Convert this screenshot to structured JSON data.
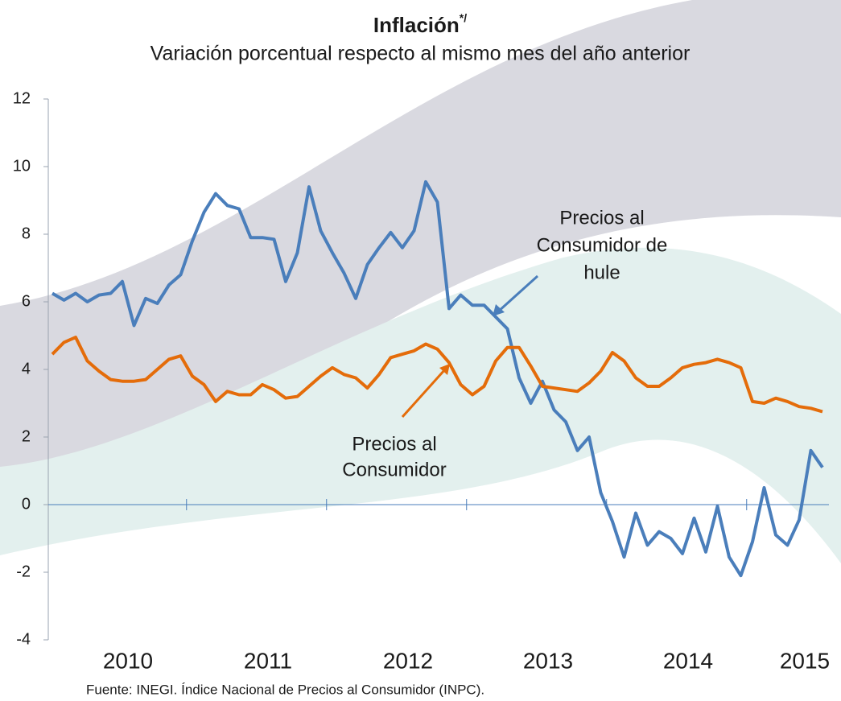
{
  "chart_data": {
    "type": "line",
    "title": "Inflación",
    "title_note": "*/",
    "subtitle": "Variación porcentual respecto al mismo mes del año anterior",
    "source": "Fuente: INEGI. Índice Nacional de Precios al Consumidor (INPC).",
    "annotations": [
      {
        "lines": [
          "Precios al",
          "Consumidor de",
          "hule"
        ],
        "color": "#4a7ebb"
      },
      {
        "lines": [
          "Precios al",
          "Consumidor"
        ],
        "color": "#e46c0a"
      }
    ],
    "categories": [
      null,
      null,
      null,
      null,
      null,
      null,
      "2010",
      null,
      null,
      null,
      null,
      null,
      null,
      null,
      null,
      null,
      null,
      null,
      "2011",
      null,
      null,
      null,
      null,
      null,
      null,
      null,
      null,
      null,
      null,
      null,
      "2012",
      null,
      null,
      null,
      null,
      null,
      null,
      null,
      null,
      null,
      null,
      null,
      "2013",
      null,
      null,
      null,
      null,
      null,
      null,
      null,
      null,
      null,
      null,
      null,
      "2014",
      null,
      null,
      null,
      null,
      null,
      null,
      null,
      null,
      null,
      "2015",
      null,
      null
    ],
    "series": [
      {
        "name": "Precios al Consumidor de hule",
        "color": "#4a7ebb",
        "values": [
          6.25,
          6.05,
          6.25,
          6.0,
          6.2,
          6.25,
          6.6,
          5.3,
          6.1,
          5.95,
          6.5,
          6.8,
          7.8,
          8.65,
          9.2,
          8.85,
          8.75,
          7.9,
          7.9,
          7.85,
          6.6,
          7.45,
          9.4,
          8.1,
          7.45,
          6.85,
          6.1,
          7.1,
          7.6,
          8.05,
          7.6,
          8.1,
          9.55,
          8.95,
          5.8,
          6.2,
          5.9,
          5.9,
          5.55,
          5.2,
          3.75,
          3.0,
          3.65,
          2.8,
          2.45,
          1.6,
          2.0,
          0.35,
          -0.5,
          -1.55,
          -0.25,
          -1.2,
          -0.8,
          -1.0,
          -1.45,
          -0.4,
          -1.4,
          -0.05,
          -1.55,
          -2.1,
          -1.1,
          0.5,
          -0.9,
          -1.2,
          -0.45,
          1.6,
          1.1
        ]
      },
      {
        "name": "Precios al Consumidor",
        "color": "#e46c0a",
        "values": [
          4.45,
          4.8,
          4.95,
          4.25,
          3.95,
          3.7,
          3.65,
          3.65,
          3.7,
          4.0,
          4.3,
          4.4,
          3.8,
          3.55,
          3.05,
          3.35,
          3.25,
          3.25,
          3.55,
          3.4,
          3.15,
          3.2,
          3.5,
          3.8,
          4.05,
          3.85,
          3.75,
          3.45,
          3.85,
          4.35,
          4.45,
          4.55,
          4.75,
          4.6,
          4.2,
          3.55,
          3.25,
          3.5,
          4.25,
          4.65,
          4.65,
          4.1,
          3.5,
          3.45,
          3.4,
          3.35,
          3.6,
          3.95,
          4.5,
          4.25,
          3.75,
          3.5,
          3.5,
          3.75,
          4.05,
          4.15,
          4.2,
          4.3,
          4.2,
          4.05,
          3.05,
          3.0,
          3.15,
          3.05,
          2.9,
          2.85,
          2.75
        ]
      }
    ],
    "ylim": [
      -4,
      12
    ],
    "yticks": [
      -4,
      -2,
      0,
      2,
      4,
      6,
      8,
      10,
      12
    ]
  }
}
